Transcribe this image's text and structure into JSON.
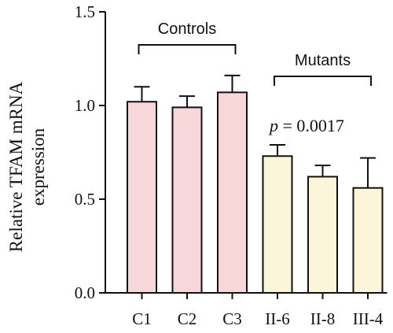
{
  "chart_data": {
    "type": "bar",
    "categories": [
      "C1",
      "C2",
      "C3",
      "II-6",
      "II-8",
      "III-4"
    ],
    "values": [
      1.02,
      0.99,
      1.07,
      0.73,
      0.62,
      0.56
    ],
    "errors": [
      0.08,
      0.06,
      0.09,
      0.06,
      0.06,
      0.16
    ],
    "bar_colors": [
      "#f8d7da",
      "#f8d7da",
      "#f8d7da",
      "#fbf6d9",
      "#fbf6d9",
      "#fbf6d9"
    ],
    "edge_color": "#111111",
    "ylabel_line1": "Relative TFAM mRNA",
    "ylabel_line2": "expression",
    "ylim": [
      0,
      1.5
    ],
    "yticks": [
      "0.0",
      "0.5",
      "1.0",
      "1.5"
    ],
    "ytick_values": [
      0,
      0.5,
      1.0,
      1.5
    ],
    "groups": [
      {
        "label": "Controls",
        "from": 0,
        "to": 2
      },
      {
        "label": "Mutants",
        "from": 3,
        "to": 5
      }
    ],
    "annotation": {
      "p_symbol": "p",
      "p_rest": " = 0.0017"
    },
    "grid": false
  }
}
